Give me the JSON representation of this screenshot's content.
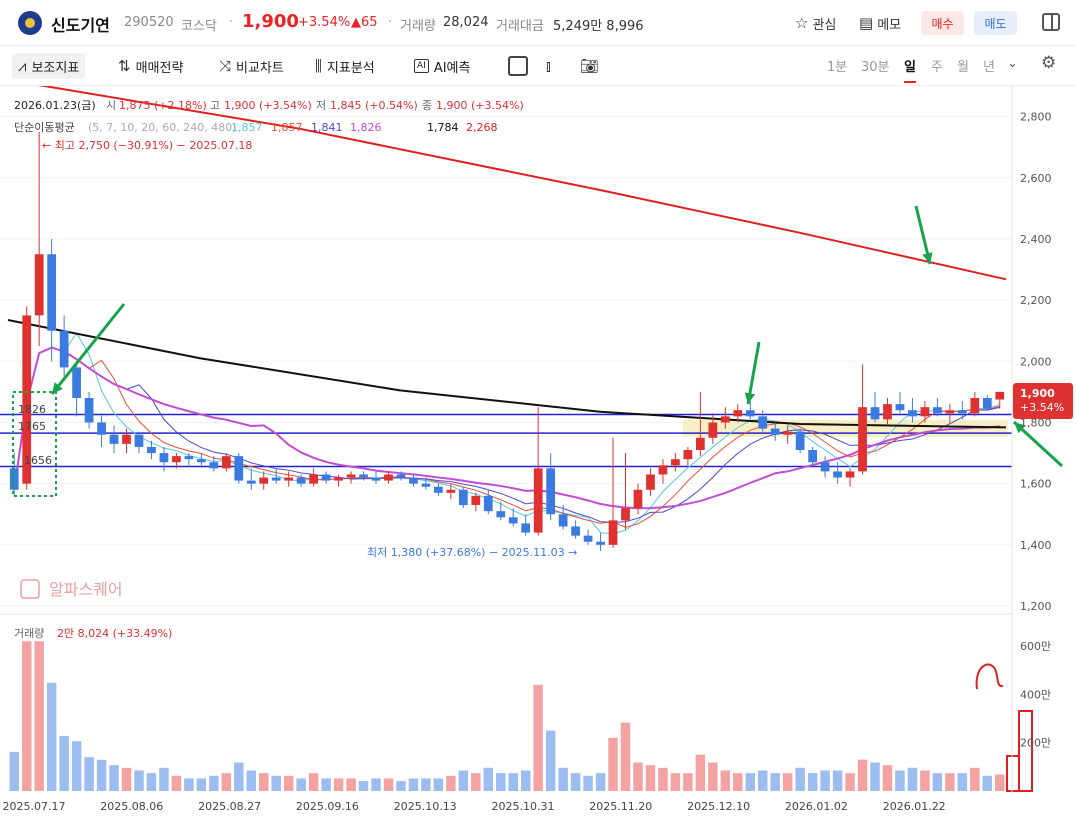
{
  "header": {
    "name": "신도기연",
    "code": "290520",
    "market": "코스닥",
    "sep": "·",
    "price": "1,900",
    "pct": "+3.54%",
    "change": "▲65",
    "vol_label": "거래량",
    "vol": "28,024",
    "amt_label": "거래대금",
    "amt": "5,249만 8,996",
    "watch": "관심",
    "memo": "메모",
    "buy": "매수",
    "sell": "매도"
  },
  "toolbar": {
    "indicators": "보조지표",
    "strategy": "매매전략",
    "compare": "비교차트",
    "analysis": "지표분석",
    "ai": "AI예측",
    "ai_badge": "AI",
    "periods": [
      "1분",
      "30분",
      "일",
      "주",
      "월",
      "년"
    ],
    "active_period": "일"
  },
  "info": {
    "date": "2026.01.23(금)",
    "o_label": "시",
    "o": "1,875 (+2.18%)",
    "h_label": "고",
    "h": "1,900 (+3.54%)",
    "l_label": "저",
    "l": "1,845 (+0.54%)",
    "c_label": "종",
    "c": "1,900 (+3.54%)",
    "ma_label": "단순이동평균",
    "ma_params": "(5, 7, 10, 20, 60, 240, 480)",
    "ma_vals": [
      "1,857",
      "1,857",
      "1,841",
      "1,826",
      "1,784",
      "2,268"
    ]
  },
  "annotations": {
    "high": "← 최고 2,750 (−30.91%) − 2025.07.18",
    "low": "최저 1,380 (+37.68%) − 2025.11.03 →",
    "hl1": "1826",
    "hl2": "1765",
    "hl3": "1656",
    "last_price": "1,900",
    "last_pct": "+3.54%",
    "watermark": "알파스퀘어"
  },
  "volume": {
    "label": "거래량",
    "value": "2만 8,024 (+33.49%)"
  },
  "colors": {
    "up": "#e03131",
    "down": "#3b7be0",
    "ma5": "#57c6e6",
    "ma7": "#e8503a",
    "ma10": "#4a4ac8",
    "ma20": "#c44cd4",
    "ma240": "#111111",
    "ma480": "#e02020",
    "hline": "#2222cc",
    "arrow": "#16a34a",
    "zone": "#f7eab0"
  },
  "chart_data": {
    "type": "candlestick",
    "ylim": [
      1200,
      2900
    ],
    "y_ticks": [
      "1,200",
      "1,400",
      "1,600",
      "1,800",
      "2,000",
      "2,200",
      "2,400",
      "2,600",
      "2,800"
    ],
    "x_ticks": [
      "2025.07.17",
      "2025.08.06",
      "2025.08.27",
      "2025.09.16",
      "2025.10.13",
      "2025.10.31",
      "2025.11.20",
      "2025.12.10",
      "2026.01.02",
      "2026.01.22"
    ],
    "volume_ticks": [
      "200만",
      "400만",
      "600만"
    ],
    "horizontal_lines": [
      1826,
      1765,
      1656
    ],
    "ohlc": [
      [
        1650,
        1700,
        1560,
        1580
      ],
      [
        1600,
        2180,
        1580,
        2150
      ],
      [
        2150,
        2750,
        2050,
        2350
      ],
      [
        2350,
        2400,
        2000,
        2100
      ],
      [
        2100,
        2150,
        1950,
        1980
      ],
      [
        1980,
        2000,
        1820,
        1880
      ],
      [
        1880,
        1900,
        1780,
        1800
      ],
      [
        1800,
        1830,
        1720,
        1760
      ],
      [
        1760,
        1790,
        1700,
        1730
      ],
      [
        1730,
        1780,
        1700,
        1760
      ],
      [
        1760,
        1770,
        1700,
        1720
      ],
      [
        1720,
        1740,
        1680,
        1700
      ],
      [
        1700,
        1720,
        1640,
        1670
      ],
      [
        1670,
        1700,
        1650,
        1690
      ],
      [
        1690,
        1700,
        1660,
        1680
      ],
      [
        1680,
        1700,
        1660,
        1670
      ],
      [
        1670,
        1690,
        1640,
        1650
      ],
      [
        1650,
        1700,
        1640,
        1690
      ],
      [
        1690,
        1700,
        1600,
        1610
      ],
      [
        1610,
        1650,
        1580,
        1600
      ],
      [
        1600,
        1640,
        1580,
        1620
      ],
      [
        1620,
        1650,
        1600,
        1610
      ],
      [
        1610,
        1640,
        1590,
        1620
      ],
      [
        1620,
        1630,
        1590,
        1600
      ],
      [
        1600,
        1650,
        1590,
        1630
      ],
      [
        1630,
        1640,
        1600,
        1610
      ],
      [
        1610,
        1630,
        1590,
        1620
      ],
      [
        1620,
        1640,
        1600,
        1630
      ],
      [
        1630,
        1640,
        1610,
        1620
      ],
      [
        1620,
        1640,
        1600,
        1610
      ],
      [
        1610,
        1640,
        1600,
        1630
      ],
      [
        1630,
        1640,
        1610,
        1620
      ],
      [
        1620,
        1630,
        1590,
        1600
      ],
      [
        1600,
        1620,
        1580,
        1590
      ],
      [
        1590,
        1600,
        1560,
        1570
      ],
      [
        1570,
        1600,
        1550,
        1580
      ],
      [
        1580,
        1590,
        1520,
        1530
      ],
      [
        1530,
        1570,
        1510,
        1560
      ],
      [
        1560,
        1580,
        1500,
        1510
      ],
      [
        1510,
        1540,
        1480,
        1490
      ],
      [
        1490,
        1520,
        1460,
        1470
      ],
      [
        1470,
        1500,
        1430,
        1440
      ],
      [
        1440,
        1850,
        1430,
        1650
      ],
      [
        1650,
        1700,
        1480,
        1500
      ],
      [
        1500,
        1530,
        1450,
        1460
      ],
      [
        1460,
        1480,
        1420,
        1430
      ],
      [
        1430,
        1450,
        1400,
        1410
      ],
      [
        1410,
        1440,
        1380,
        1400
      ],
      [
        1400,
        1750,
        1390,
        1480
      ],
      [
        1480,
        1700,
        1450,
        1520
      ],
      [
        1520,
        1600,
        1500,
        1580
      ],
      [
        1580,
        1650,
        1560,
        1630
      ],
      [
        1630,
        1680,
        1600,
        1660
      ],
      [
        1660,
        1700,
        1640,
        1680
      ],
      [
        1680,
        1720,
        1660,
        1710
      ],
      [
        1710,
        1900,
        1690,
        1750
      ],
      [
        1750,
        1830,
        1730,
        1800
      ],
      [
        1800,
        1850,
        1780,
        1820
      ],
      [
        1820,
        1860,
        1800,
        1840
      ],
      [
        1840,
        1870,
        1810,
        1820
      ],
      [
        1820,
        1840,
        1770,
        1780
      ],
      [
        1780,
        1800,
        1740,
        1760
      ],
      [
        1760,
        1790,
        1730,
        1770
      ],
      [
        1770,
        1780,
        1700,
        1710
      ],
      [
        1710,
        1720,
        1660,
        1670
      ],
      [
        1670,
        1690,
        1620,
        1640
      ],
      [
        1640,
        1670,
        1600,
        1620
      ],
      [
        1620,
        1650,
        1590,
        1640
      ],
      [
        1640,
        1990,
        1630,
        1850
      ],
      [
        1850,
        1900,
        1800,
        1810
      ],
      [
        1810,
        1880,
        1790,
        1860
      ],
      [
        1860,
        1900,
        1830,
        1840
      ],
      [
        1840,
        1880,
        1800,
        1820
      ],
      [
        1820,
        1870,
        1800,
        1850
      ],
      [
        1850,
        1880,
        1820,
        1830
      ],
      [
        1830,
        1860,
        1800,
        1840
      ],
      [
        1840,
        1870,
        1810,
        1830
      ],
      [
        1830,
        1900,
        1820,
        1880
      ],
      [
        1880,
        1890,
        1840,
        1845
      ],
      [
        1875,
        1900,
        1845,
        1900
      ]
    ],
    "series": [
      {
        "name": "5",
        "values": [
          1857
        ]
      },
      {
        "name": "7",
        "values": [
          1857
        ]
      },
      {
        "name": "10",
        "values": [
          1841
        ]
      },
      {
        "name": "20",
        "values": [
          1826
        ]
      },
      {
        "name": "240",
        "values": [
          1784
        ]
      },
      {
        "name": "480",
        "values": [
          2268
        ]
      }
    ]
  }
}
